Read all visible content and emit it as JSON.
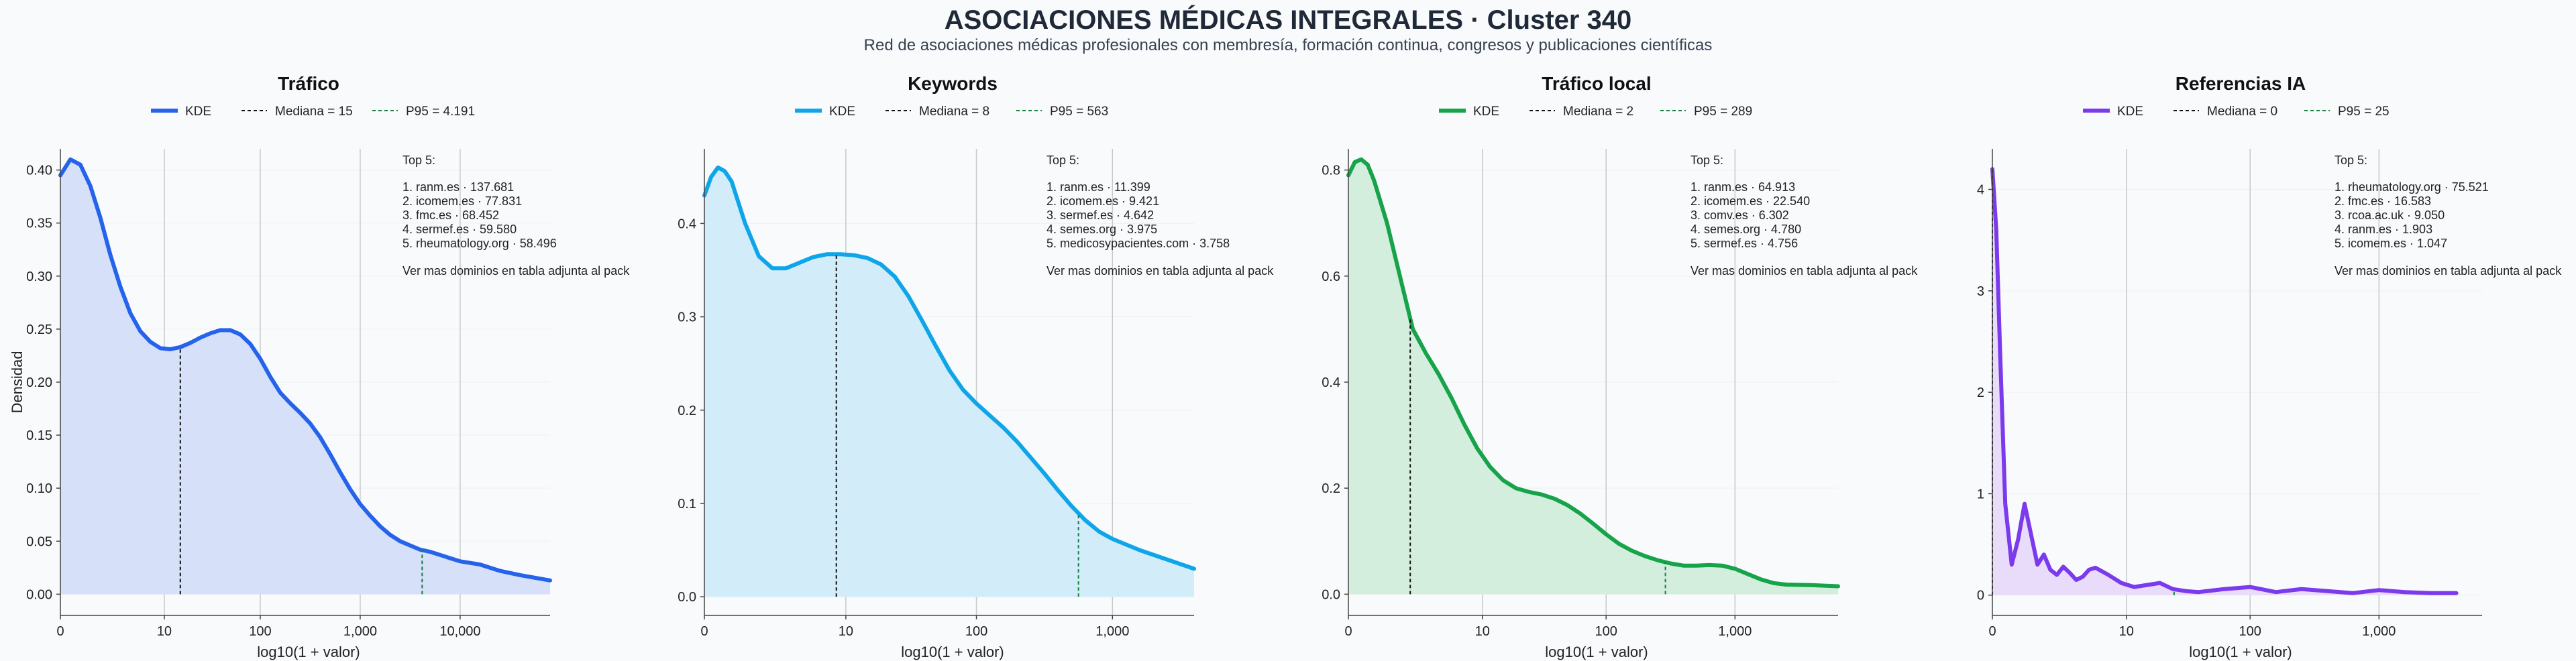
{
  "page": {
    "title": "ASOCIACIONES MÉDICAS INTEGRALES · Cluster 340",
    "subtitle": "Red de asociaciones médicas profesionales con membresía, formación continua, congresos y publicaciones científicas"
  },
  "chart_data": [
    {
      "type": "area",
      "title": "Tráfico",
      "xlabel": "log10(1 + valor)",
      "ylabel": "Densidad",
      "color": "#2563eb",
      "fill": "#d6e0f8",
      "xlim": [
        0,
        4.9
      ],
      "ylim": [
        -0.02,
        0.42
      ],
      "x_ticks": [
        {
          "v": 0,
          "label": "0"
        },
        {
          "v": 1.04,
          "label": "10"
        },
        {
          "v": 2.0,
          "label": "100"
        },
        {
          "v": 3.0,
          "label": "1,000"
        },
        {
          "v": 4.0,
          "label": "10,000"
        }
      ],
      "y_ticks": [
        {
          "v": 0,
          "label": "0.00"
        },
        {
          "v": 0.05,
          "label": "0.05"
        },
        {
          "v": 0.1,
          "label": "0.10"
        },
        {
          "v": 0.15,
          "label": "0.15"
        },
        {
          "v": 0.2,
          "label": "0.20"
        },
        {
          "v": 0.25,
          "label": "0.25"
        },
        {
          "v": 0.3,
          "label": "0.30"
        },
        {
          "v": 0.35,
          "label": "0.35"
        },
        {
          "v": 0.4,
          "label": "0.40"
        }
      ],
      "legend": [
        "KDE",
        "Mediana = 15",
        "P95 = 4.191"
      ],
      "median_x": 1.2,
      "p95_x": 3.62,
      "series": [
        {
          "name": "KDE",
          "x": [
            0,
            0.1,
            0.2,
            0.3,
            0.4,
            0.5,
            0.6,
            0.7,
            0.8,
            0.9,
            1.0,
            1.1,
            1.2,
            1.3,
            1.4,
            1.5,
            1.6,
            1.7,
            1.8,
            1.9,
            2.0,
            2.1,
            2.2,
            2.3,
            2.4,
            2.5,
            2.6,
            2.7,
            2.8,
            2.9,
            3.0,
            3.1,
            3.2,
            3.3,
            3.4,
            3.5,
            3.6,
            3.7,
            3.8,
            3.9,
            4.0,
            4.2,
            4.4,
            4.6,
            4.9
          ],
          "y": [
            0.395,
            0.41,
            0.405,
            0.385,
            0.355,
            0.32,
            0.29,
            0.265,
            0.248,
            0.238,
            0.232,
            0.231,
            0.233,
            0.237,
            0.242,
            0.246,
            0.249,
            0.249,
            0.245,
            0.236,
            0.222,
            0.205,
            0.19,
            0.18,
            0.171,
            0.161,
            0.148,
            0.132,
            0.115,
            0.099,
            0.085,
            0.074,
            0.064,
            0.056,
            0.05,
            0.046,
            0.042,
            0.04,
            0.037,
            0.034,
            0.031,
            0.028,
            0.022,
            0.018,
            0.013
          ]
        }
      ],
      "annotation": {
        "header": "Top 5:",
        "lines": [
          "1. ranm.es · 137.681",
          "2. icomem.es · 77.831",
          "3. fmc.es · 68.452",
          "4. sermef.es · 59.580",
          "5. rheumatology.org · 58.496"
        ],
        "footer": "Ver mas dominios en tabla adjunta al pack"
      }
    },
    {
      "type": "area",
      "title": "Keywords",
      "xlabel": "log10(1 + valor)",
      "ylabel": "",
      "color": "#0ea5e9",
      "fill": "#d2edf9",
      "xlim": [
        0,
        3.6
      ],
      "ylim": [
        -0.02,
        0.48
      ],
      "x_ticks": [
        {
          "v": 0,
          "label": "0"
        },
        {
          "v": 1.04,
          "label": "10"
        },
        {
          "v": 2.0,
          "label": "100"
        },
        {
          "v": 3.0,
          "label": "1,000"
        }
      ],
      "y_ticks": [
        {
          "v": 0,
          "label": "0.0"
        },
        {
          "v": 0.1,
          "label": "0.1"
        },
        {
          "v": 0.2,
          "label": "0.2"
        },
        {
          "v": 0.3,
          "label": "0.3"
        },
        {
          "v": 0.4,
          "label": "0.4"
        }
      ],
      "legend": [
        "KDE",
        "Mediana = 8",
        "P95 = 563"
      ],
      "median_x": 0.97,
      "p95_x": 2.75,
      "series": [
        {
          "name": "KDE",
          "x": [
            0,
            0.05,
            0.1,
            0.15,
            0.2,
            0.3,
            0.4,
            0.5,
            0.6,
            0.7,
            0.8,
            0.9,
            1.0,
            1.1,
            1.2,
            1.3,
            1.4,
            1.5,
            1.6,
            1.7,
            1.8,
            1.9,
            2.0,
            2.1,
            2.2,
            2.3,
            2.4,
            2.5,
            2.6,
            2.7,
            2.8,
            2.9,
            3.0,
            3.2,
            3.4,
            3.6
          ],
          "y": [
            0.43,
            0.45,
            0.46,
            0.456,
            0.445,
            0.4,
            0.365,
            0.352,
            0.352,
            0.358,
            0.364,
            0.367,
            0.367,
            0.366,
            0.363,
            0.356,
            0.343,
            0.322,
            0.296,
            0.269,
            0.243,
            0.222,
            0.207,
            0.194,
            0.181,
            0.166,
            0.149,
            0.132,
            0.114,
            0.097,
            0.082,
            0.07,
            0.062,
            0.05,
            0.04,
            0.03
          ]
        }
      ],
      "annotation": {
        "header": "Top 5:",
        "lines": [
          "1. ranm.es · 11.399",
          "2. icomem.es · 9.421",
          "3. sermef.es · 4.642",
          "4. semes.org · 3.975",
          "5. medicosypacientes.com · 3.758"
        ],
        "footer": "Ver mas dominios en tabla adjunta al pack"
      }
    },
    {
      "type": "area",
      "title": "Tráfico local",
      "xlabel": "log10(1 + valor)",
      "ylabel": "",
      "color": "#16a34a",
      "fill": "#d3eedd",
      "xlim": [
        0,
        3.8
      ],
      "ylim": [
        -0.04,
        0.84
      ],
      "x_ticks": [
        {
          "v": 0,
          "label": "0"
        },
        {
          "v": 1.04,
          "label": "10"
        },
        {
          "v": 2.0,
          "label": "100"
        },
        {
          "v": 3.0,
          "label": "1,000"
        }
      ],
      "y_ticks": [
        {
          "v": 0,
          "label": "0.0"
        },
        {
          "v": 0.2,
          "label": "0.2"
        },
        {
          "v": 0.4,
          "label": "0.4"
        },
        {
          "v": 0.6,
          "label": "0.6"
        },
        {
          "v": 0.8,
          "label": "0.8"
        }
      ],
      "legend": [
        "KDE",
        "Mediana = 2",
        "P95 = 289"
      ],
      "median_x": 0.48,
      "p95_x": 2.46,
      "series": [
        {
          "name": "KDE",
          "x": [
            0,
            0.05,
            0.1,
            0.15,
            0.2,
            0.3,
            0.4,
            0.5,
            0.6,
            0.7,
            0.8,
            0.9,
            1.0,
            1.1,
            1.2,
            1.3,
            1.4,
            1.5,
            1.6,
            1.7,
            1.8,
            1.9,
            2.0,
            2.1,
            2.2,
            2.3,
            2.4,
            2.5,
            2.6,
            2.7,
            2.8,
            2.9,
            3.0,
            3.1,
            3.2,
            3.3,
            3.4,
            3.6,
            3.8
          ],
          "y": [
            0.79,
            0.815,
            0.82,
            0.81,
            0.78,
            0.7,
            0.6,
            0.5,
            0.455,
            0.415,
            0.37,
            0.32,
            0.275,
            0.24,
            0.215,
            0.2,
            0.193,
            0.188,
            0.18,
            0.168,
            0.152,
            0.133,
            0.113,
            0.095,
            0.082,
            0.072,
            0.064,
            0.058,
            0.054,
            0.054,
            0.055,
            0.054,
            0.048,
            0.038,
            0.028,
            0.021,
            0.018,
            0.017,
            0.015
          ]
        }
      ],
      "annotation": {
        "header": "Top 5:",
        "lines": [
          "1. ranm.es · 64.913",
          "2. icomem.es · 22.540",
          "3. comv.es · 6.302",
          "4. semes.org · 4.780",
          "5. sermef.es · 4.756"
        ],
        "footer": "Ver mas dominios en tabla adjunta al pack"
      }
    },
    {
      "type": "area",
      "title": "Referencias IA",
      "xlabel": "log10(1 + valor)",
      "ylabel": "",
      "color": "#7c3aed",
      "fill": "#e8dcfa",
      "xlim": [
        0,
        3.8
      ],
      "ylim": [
        -0.2,
        4.4
      ],
      "x_ticks": [
        {
          "v": 0,
          "label": "0"
        },
        {
          "v": 1.04,
          "label": "10"
        },
        {
          "v": 2.0,
          "label": "100"
        },
        {
          "v": 3.0,
          "label": "1,000"
        }
      ],
      "y_ticks": [
        {
          "v": 0,
          "label": "0"
        },
        {
          "v": 1,
          "label": "1"
        },
        {
          "v": 2,
          "label": "2"
        },
        {
          "v": 3,
          "label": "3"
        },
        {
          "v": 4,
          "label": "4"
        }
      ],
      "legend": [
        "KDE",
        "Mediana = 0",
        "P95 = 25"
      ],
      "median_x": 0,
      "p95_x": 1.41,
      "series": [
        {
          "name": "KDE",
          "x": [
            0,
            0.03,
            0.06,
            0.1,
            0.15,
            0.2,
            0.25,
            0.3,
            0.35,
            0.4,
            0.45,
            0.5,
            0.55,
            0.6,
            0.65,
            0.7,
            0.75,
            0.8,
            0.9,
            1.0,
            1.1,
            1.2,
            1.3,
            1.4,
            1.5,
            1.6,
            1.8,
            2.0,
            2.2,
            2.4,
            2.6,
            2.8,
            3.0,
            3.2,
            3.4,
            3.6
          ],
          "y": [
            4.2,
            3.6,
            2.4,
            0.9,
            0.3,
            0.55,
            0.9,
            0.6,
            0.3,
            0.4,
            0.25,
            0.2,
            0.28,
            0.22,
            0.15,
            0.18,
            0.25,
            0.27,
            0.2,
            0.12,
            0.08,
            0.1,
            0.12,
            0.06,
            0.04,
            0.03,
            0.06,
            0.08,
            0.03,
            0.06,
            0.04,
            0.02,
            0.05,
            0.03,
            0.02,
            0.02
          ]
        }
      ],
      "annotation": {
        "header": "Top 5:",
        "lines": [
          "1. rheumatology.org · 75.521",
          "2. fmc.es · 16.583",
          "3. rcoa.ac.uk · 9.050",
          "4. ranm.es · 1.903",
          "5. icomem.es · 1.047"
        ],
        "footer": "Ver mas dominios en tabla adjunta al pack"
      }
    }
  ]
}
